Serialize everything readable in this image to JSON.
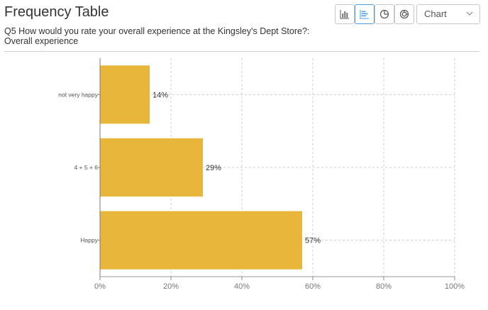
{
  "header": {
    "title": "Frequency Table",
    "question_line1": "Q5 How would you rate your overall experience at the Kingsley's Dept Store?:",
    "question_line2": "Overall experience"
  },
  "toolbar": {
    "buttons": [
      {
        "name": "vertical-bar-chart-button",
        "icon": "column-chart-icon",
        "active": false
      },
      {
        "name": "horizontal-bar-chart-button",
        "icon": "bar-chart-icon",
        "active": true
      },
      {
        "name": "pie-chart-button",
        "icon": "pie-chart-icon",
        "active": false
      },
      {
        "name": "donut-chart-button",
        "icon": "donut-chart-icon",
        "active": false
      }
    ],
    "chart_select": {
      "selected": "Chart"
    }
  },
  "colors": {
    "bar": "#E8B63A",
    "accent": "#4a9fe0",
    "grid": "#cccccc"
  },
  "chart_data": {
    "type": "bar",
    "orientation": "horizontal",
    "categories": [
      "not very happy",
      "4 + 5 + 6",
      "Happy"
    ],
    "values": [
      14,
      29,
      57
    ],
    "value_labels": [
      "14%",
      "29%",
      "57%"
    ],
    "xlim": [
      0,
      100
    ],
    "xticks": [
      "0%",
      "20%",
      "40%",
      "60%",
      "80%",
      "100%"
    ],
    "grid": true
  }
}
